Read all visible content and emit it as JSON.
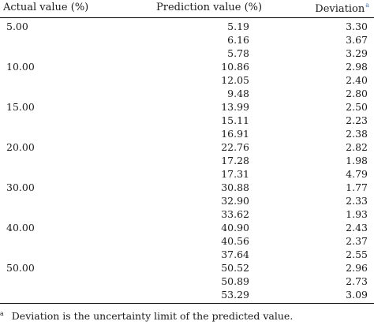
{
  "table": {
    "headers": {
      "actual": "Actual value (%)",
      "prediction": "Prediction value (%)",
      "deviation": "Deviation",
      "deviation_marker": "a"
    },
    "rows": [
      {
        "actual": "5.00",
        "prediction": "5.19",
        "deviation": "3.30"
      },
      {
        "actual": "",
        "prediction": "6.16",
        "deviation": "3.67"
      },
      {
        "actual": "",
        "prediction": "5.78",
        "deviation": "3.29"
      },
      {
        "actual": "10.00",
        "prediction": "10.86",
        "deviation": "2.98"
      },
      {
        "actual": "",
        "prediction": "12.05",
        "deviation": "2.40"
      },
      {
        "actual": "",
        "prediction": "9.48",
        "deviation": "2.80"
      },
      {
        "actual": "15.00",
        "prediction": "13.99",
        "deviation": "2.50"
      },
      {
        "actual": "",
        "prediction": "15.11",
        "deviation": "2.23"
      },
      {
        "actual": "",
        "prediction": "16.91",
        "deviation": "2.38"
      },
      {
        "actual": "20.00",
        "prediction": "22.76",
        "deviation": "2.82"
      },
      {
        "actual": "",
        "prediction": "17.28",
        "deviation": "1.98"
      },
      {
        "actual": "",
        "prediction": "17.31",
        "deviation": "4.79"
      },
      {
        "actual": "30.00",
        "prediction": "30.88",
        "deviation": "1.77"
      },
      {
        "actual": "",
        "prediction": "32.90",
        "deviation": "2.33"
      },
      {
        "actual": "",
        "prediction": "33.62",
        "deviation": "1.93"
      },
      {
        "actual": "40.00",
        "prediction": "40.90",
        "deviation": "2.43"
      },
      {
        "actual": "",
        "prediction": "40.56",
        "deviation": "2.37"
      },
      {
        "actual": "",
        "prediction": "37.64",
        "deviation": "2.55"
      },
      {
        "actual": "50.00",
        "prediction": "50.52",
        "deviation": "2.96"
      },
      {
        "actual": "",
        "prediction": "50.89",
        "deviation": "2.73"
      },
      {
        "actual": "",
        "prediction": "53.29",
        "deviation": "3.09"
      }
    ]
  },
  "footnote": {
    "marker": "a",
    "text": "Deviation is the uncertainty limit of the predicted value."
  }
}
